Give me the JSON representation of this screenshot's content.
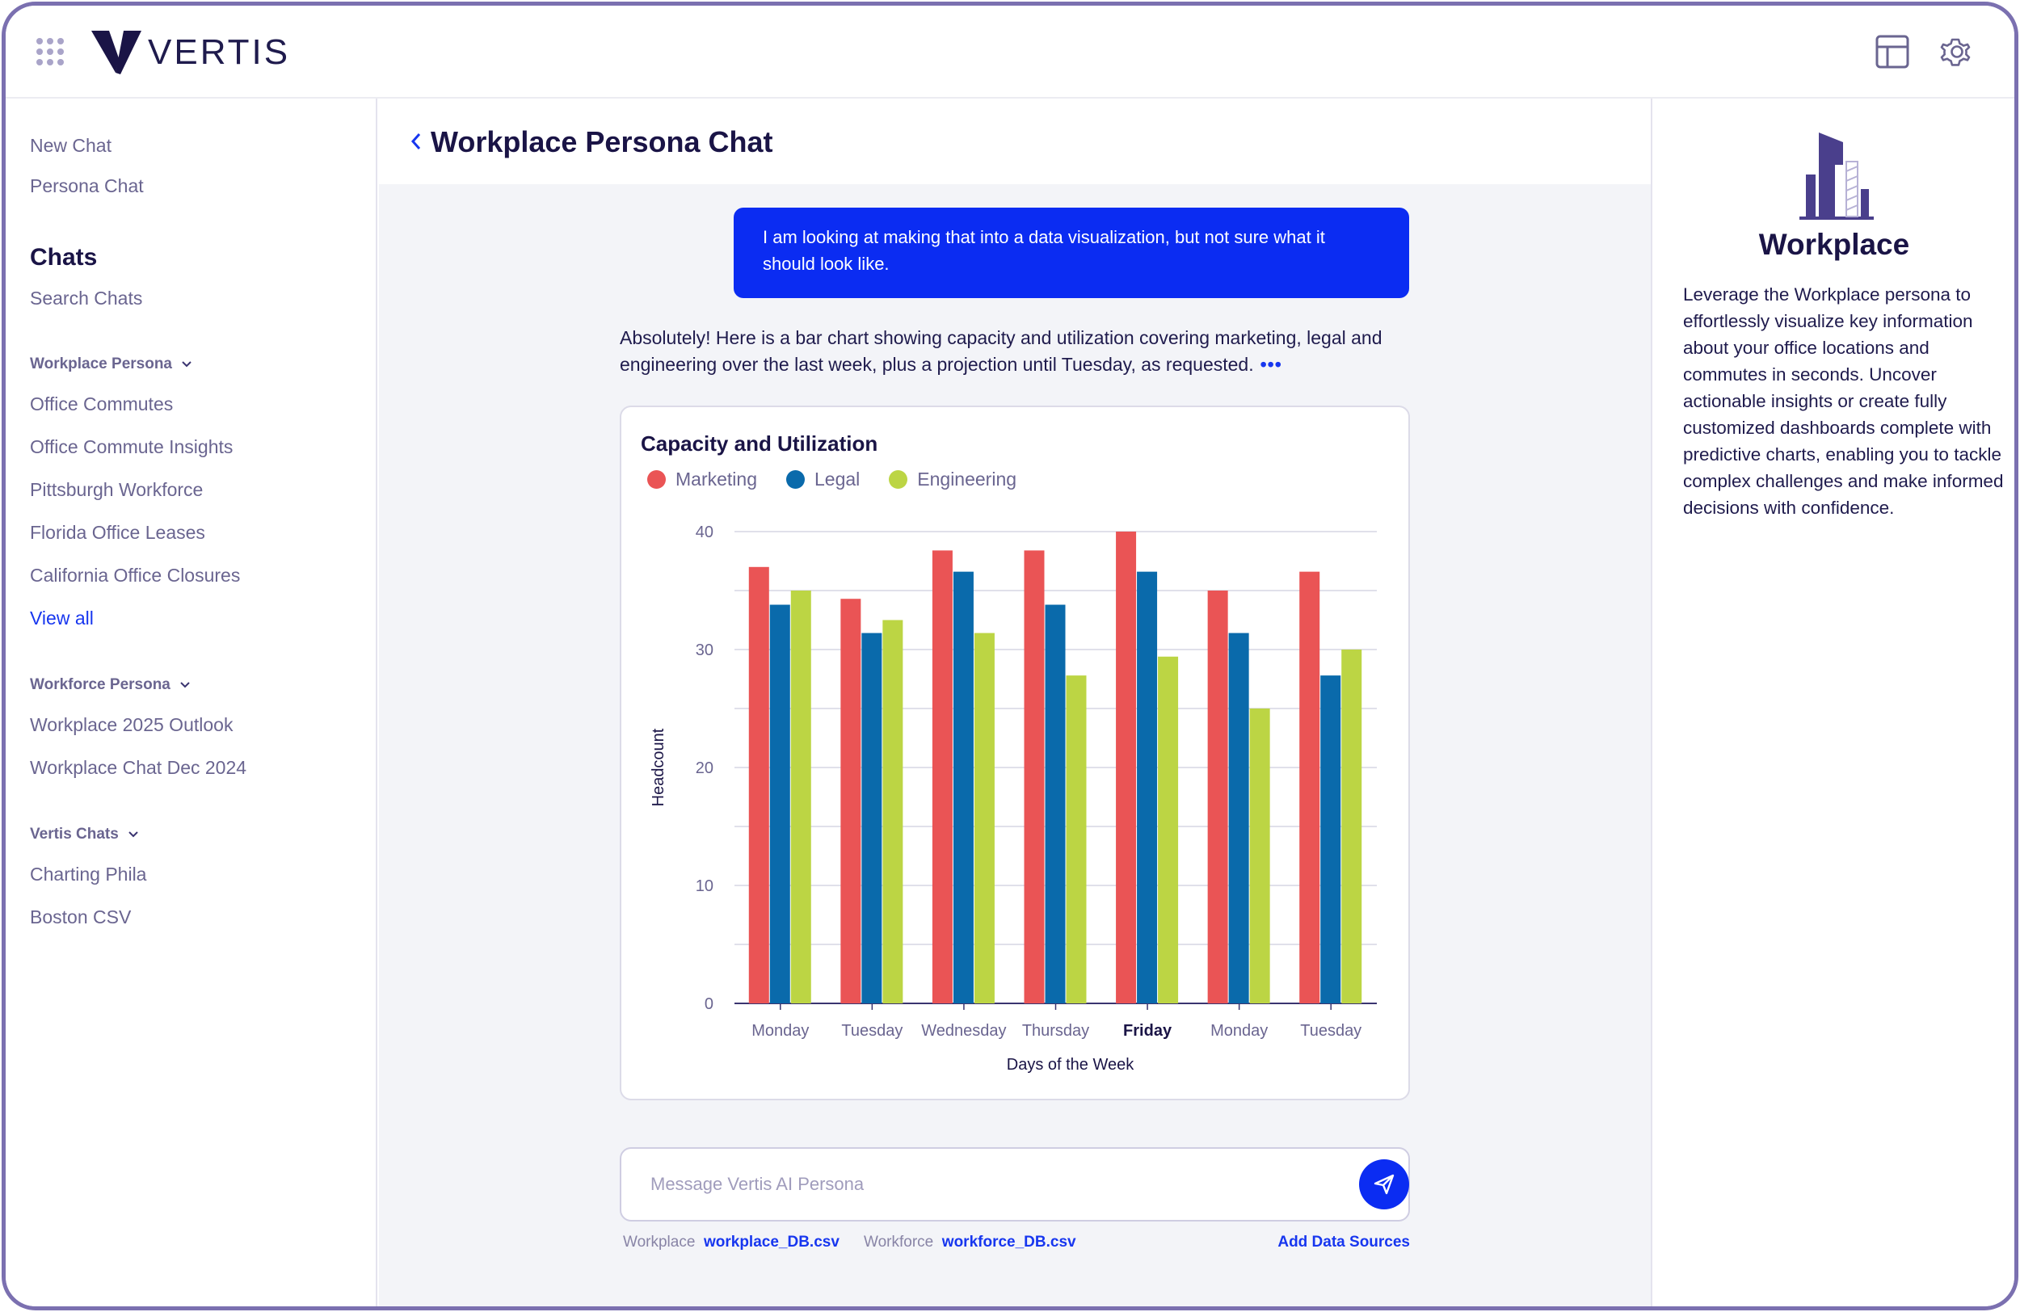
{
  "app": {
    "brand": "VERTIS"
  },
  "sidebar": {
    "top_links": [
      "New Chat",
      "Persona Chat"
    ],
    "chats_heading": "Chats",
    "search_label": "Search Chats",
    "sections": [
      {
        "title": "Workplace Persona",
        "items": [
          "Office Commutes",
          "Office Commute Insights",
          "Pittsburgh Workforce",
          "Florida Office Leases",
          "California Office Closures"
        ],
        "view_all": "View all"
      },
      {
        "title": "Workforce Persona",
        "items": [
          "Workplace 2025 Outlook",
          "Workplace Chat Dec 2024"
        ]
      },
      {
        "title": "Vertis Chats",
        "items": [
          "Charting Phila",
          "Boston CSV"
        ]
      }
    ]
  },
  "main": {
    "title": "Workplace Persona Chat",
    "user_message": "I am looking at making that into a data visualization, but not sure what it should look like.",
    "assistant_message": "Absolutely! Here is a bar chart showing capacity and utilization covering marketing, legal and engineering over the last week, plus a projection until Tuesday, as requested.",
    "more_indicator": "•••",
    "composer": {
      "placeholder": "Message Vertis AI Persona"
    },
    "sources": [
      {
        "label": "Workplace",
        "file": "workplace_DB.csv"
      },
      {
        "label": "Workforce",
        "file": "workforce_DB.csv"
      }
    ],
    "add_sources_label": "Add Data Sources"
  },
  "chart_data": {
    "type": "bar",
    "title": "Capacity and Utilization",
    "xlabel": "Days of the Week",
    "ylabel": "Headcount",
    "ylim": [
      0,
      40
    ],
    "yticks": [
      0,
      10,
      20,
      30,
      40
    ],
    "grid": true,
    "legend_position": "top-left",
    "categories": [
      "Monday",
      "Tuesday",
      "Wednesday",
      "Thursday",
      "Friday",
      "Monday",
      "Tuesday"
    ],
    "highlighted_category_index": 4,
    "series": [
      {
        "name": "Marketing",
        "color": "#ea5455",
        "values": [
          37,
          34.3,
          38.4,
          38.4,
          40,
          35,
          36.6
        ]
      },
      {
        "name": "Legal",
        "color": "#0a6aab",
        "values": [
          33.8,
          31.4,
          36.6,
          33.8,
          36.6,
          31.4,
          27.8
        ]
      },
      {
        "name": "Engineering",
        "color": "#bcd544",
        "values": [
          35,
          32.5,
          31.4,
          27.8,
          29.4,
          25,
          30
        ]
      }
    ]
  },
  "right_panel": {
    "title": "Workplace",
    "description": "Leverage the Workplace persona to effortlessly visualize key information about your office locations and commutes in seconds. Uncover actionable insights or create fully customized dashboards complete with predictive charts, enabling you to tackle complex challenges and make informed decisions with confidence."
  },
  "icons": {
    "apps": "apps-grid-icon",
    "layout": "layout-icon",
    "settings": "gear-icon",
    "back": "chevron-left-icon",
    "send": "send-icon",
    "persona": "building-icon"
  }
}
